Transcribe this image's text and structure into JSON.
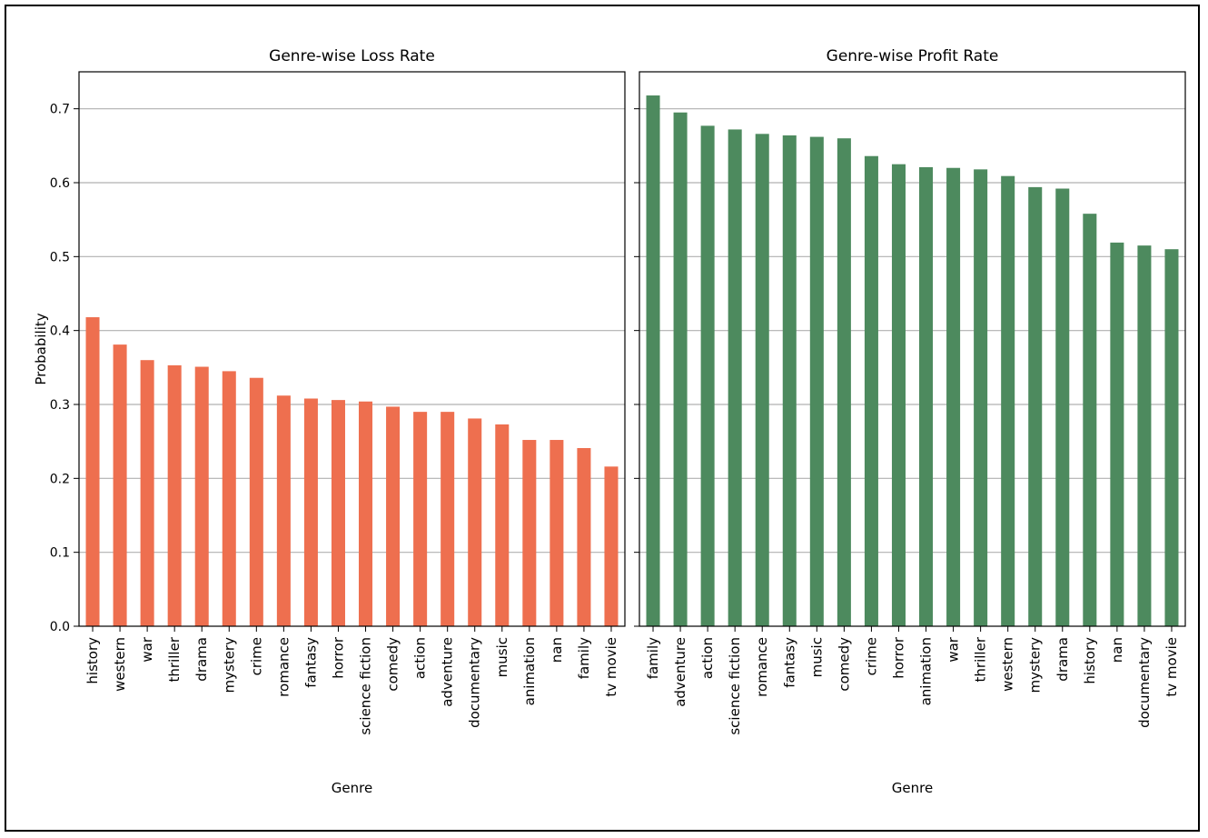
{
  "chart_data": [
    {
      "type": "bar",
      "title": "Genre-wise Loss Rate",
      "xlabel": "Genre",
      "ylabel": "Probability",
      "ylim": [
        0,
        0.75
      ],
      "yticks": [
        "0.0",
        "0.1",
        "0.2",
        "0.3",
        "0.4",
        "0.5",
        "0.6",
        "0.7"
      ],
      "grid": "horizontal",
      "color": "#ee6f4f",
      "categories": [
        "history",
        "western",
        "war",
        "thriller",
        "drama",
        "mystery",
        "crime",
        "romance",
        "fantasy",
        "horror",
        "science fiction",
        "comedy",
        "action",
        "adventure",
        "documentary",
        "music",
        "animation",
        "nan",
        "family",
        "tv movie"
      ],
      "values": [
        0.418,
        0.381,
        0.36,
        0.353,
        0.351,
        0.345,
        0.336,
        0.312,
        0.308,
        0.306,
        0.304,
        0.297,
        0.29,
        0.29,
        0.281,
        0.273,
        0.252,
        0.252,
        0.241,
        0.216
      ]
    },
    {
      "type": "bar",
      "title": "Genre-wise Profit Rate",
      "xlabel": "Genre",
      "ylabel": "",
      "ylim": [
        0,
        0.75
      ],
      "grid": "horizontal",
      "color": "#4d8a5e",
      "categories": [
        "family",
        "adventure",
        "action",
        "science fiction",
        "romance",
        "fantasy",
        "music",
        "comedy",
        "crime",
        "horror",
        "animation",
        "war",
        "thriller",
        "western",
        "mystery",
        "drama",
        "history",
        "nan",
        "documentary",
        "tv movie"
      ],
      "values": [
        0.718,
        0.695,
        0.677,
        0.672,
        0.666,
        0.664,
        0.662,
        0.66,
        0.636,
        0.625,
        0.621,
        0.62,
        0.618,
        0.609,
        0.594,
        0.592,
        0.558,
        0.519,
        0.515,
        0.51
      ]
    }
  ]
}
